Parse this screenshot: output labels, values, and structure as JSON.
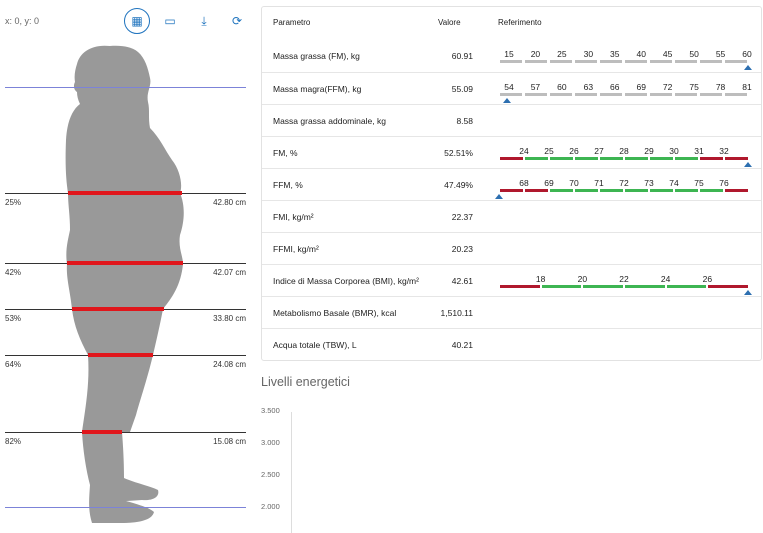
{
  "coords": "x: 0, y: 0",
  "toolbar": {
    "grid_icon": "grid-icon",
    "ruler_icon": "ruler-icon",
    "download_icon": "download-icon",
    "refresh_icon": "refresh-icon"
  },
  "body_measurements": [
    {
      "pct": "25%",
      "cm": "42.80 cm"
    },
    {
      "pct": "42%",
      "cm": "42.07 cm"
    },
    {
      "pct": "53%",
      "cm": "33.80 cm"
    },
    {
      "pct": "64%",
      "cm": "24.08 cm"
    },
    {
      "pct": "82%",
      "cm": "15.08 cm"
    }
  ],
  "table": {
    "headers": {
      "param": "Parametro",
      "value": "Valore",
      "ref": "Referimento"
    },
    "rows": [
      {
        "name": "Massa grassa (FM), kg",
        "value": "60.91",
        "scale": {
          "type": "grey",
          "ticks": [
            "15",
            "20",
            "25",
            "30",
            "35",
            "40",
            "45",
            "50",
            "55",
            "60"
          ],
          "marker": 0.997
        }
      },
      {
        "name": "Massa magra(FFM), kg",
        "value": "55.09",
        "scale": {
          "type": "grey",
          "ticks": [
            "54",
            "57",
            "60",
            "63",
            "66",
            "69",
            "72",
            "75",
            "78",
            "81"
          ],
          "marker": 0.03
        }
      },
      {
        "name": "Massa grassa addominale, kg",
        "value": "8.58",
        "scale": null
      },
      {
        "name": "FM, %",
        "value": "52.51%",
        "scale": {
          "type": "color",
          "ticks": [
            "24",
            "25",
            "26",
            "27",
            "28",
            "29",
            "30",
            "31",
            "32"
          ],
          "colors": [
            "#b0182d",
            "#3db552",
            "#3db552",
            "#3db552",
            "#3db552",
            "#3db552",
            "#3db552",
            "#3db552",
            "#b0182d",
            "#b0182d"
          ],
          "marker": 0.997
        }
      },
      {
        "name": "FFM, %",
        "value": "47.49%",
        "scale": {
          "type": "color",
          "ticks": [
            "68",
            "69",
            "70",
            "71",
            "72",
            "73",
            "74",
            "75",
            "76"
          ],
          "colors": [
            "#b0182d",
            "#b0182d",
            "#3db552",
            "#3db552",
            "#3db552",
            "#3db552",
            "#3db552",
            "#3db552",
            "#3db552",
            "#b0182d"
          ],
          "marker": 0.0
        }
      },
      {
        "name": "FMI, kg/m²",
        "value": "22.37",
        "scale": null
      },
      {
        "name": "FFMI, kg/m²",
        "value": "20.23",
        "scale": null
      },
      {
        "name": "Indice di Massa Corporea (BMI), kg/m²",
        "value": "42.61",
        "scale": {
          "type": "color",
          "ticks": [
            "18",
            "20",
            "22",
            "24",
            "26"
          ],
          "colors": [
            "#b0182d",
            "#3db552",
            "#3db552",
            "#3db552",
            "#3db552",
            "#b0182d"
          ],
          "marker": 0.997
        }
      },
      {
        "name": "Metabolismo Basale (BMR), kcal",
        "value": "1,510.11",
        "scale": null
      },
      {
        "name": "Acqua totale (TBW), L",
        "value": "40.21",
        "scale": null
      }
    ]
  },
  "energy": {
    "title": "Livelli energetici",
    "yticks": [
      "3.500",
      "3.000",
      "2.500",
      "2.000"
    ]
  },
  "colors": {
    "accent": "#1e73be",
    "red": "#e0161b",
    "green": "#3db552",
    "darkred": "#b0182d",
    "grey": "#bdbdbd",
    "silhouette": "#999999"
  }
}
